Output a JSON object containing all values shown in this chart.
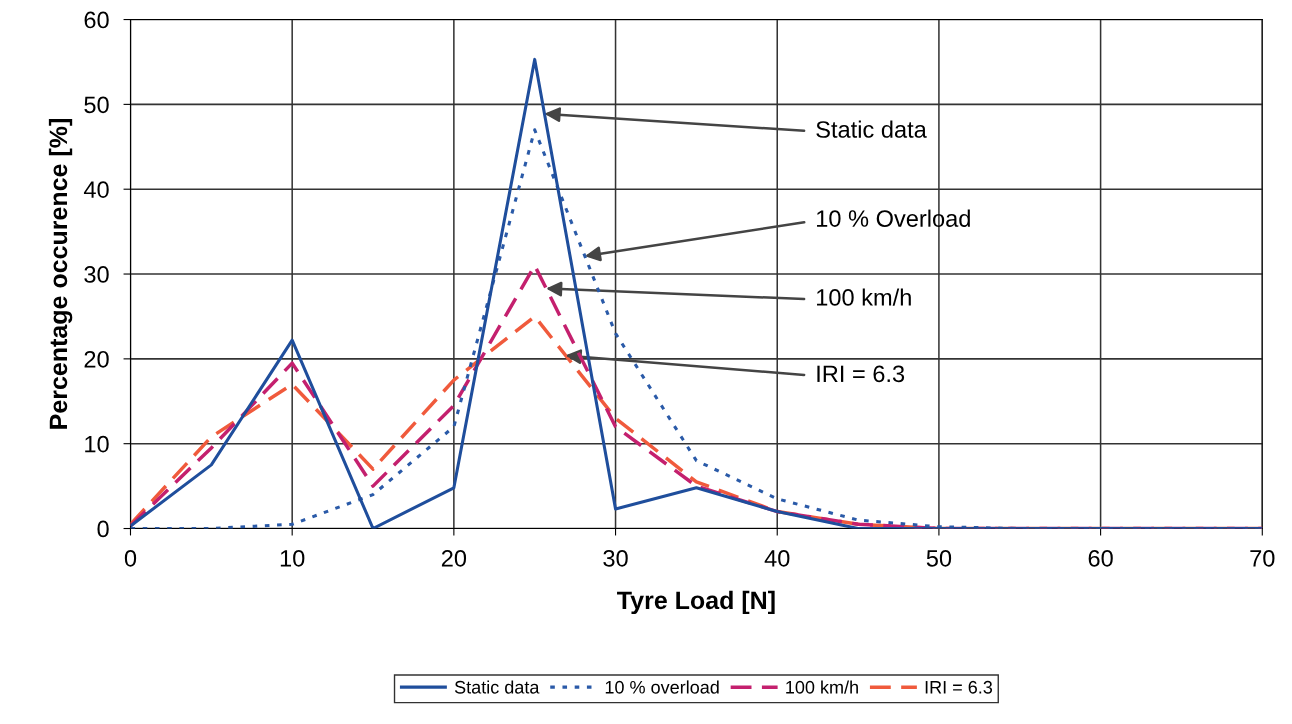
{
  "chart_data": {
    "type": "line",
    "xlabel": "Tyre Load [N]",
    "ylabel": "Percentage occurence [%]",
    "x": [
      0,
      5,
      10,
      15,
      20,
      25,
      30,
      35,
      40,
      45,
      50,
      55,
      60,
      65,
      70
    ],
    "series": [
      {
        "name": "Static data",
        "color": "#1f4e9c",
        "line_style": "solid",
        "values": [
          0.3,
          7.5,
          22.2,
          0,
          4.8,
          55.3,
          2.3,
          4.8,
          2,
          0,
          0,
          0,
          0,
          0,
          0
        ]
      },
      {
        "name": "10 % overload",
        "color": "#2a5aa8",
        "line_style": "dotted",
        "values": [
          0,
          0,
          0.5,
          4,
          12,
          47,
          23,
          8,
          3.5,
          1,
          0.2,
          0,
          0,
          0,
          0
        ]
      },
      {
        "name": "100 km/h",
        "color": "#c4206e",
        "line_style": "dashed",
        "values": [
          0.3,
          9.5,
          19.5,
          5,
          14.5,
          31,
          12,
          5,
          2,
          0.5,
          0,
          0,
          0,
          0,
          0
        ]
      },
      {
        "name": "IRI = 6.3",
        "color": "#f05a3c",
        "line_style": "dashed",
        "values": [
          0.5,
          10.8,
          17,
          7,
          17.5,
          25,
          13,
          5.5,
          2,
          0.5,
          0,
          0,
          0,
          0,
          0
        ]
      }
    ],
    "annotations": [
      {
        "text": "Static data",
        "x": 25.6,
        "y": 48.9
      },
      {
        "text": "10 % Overload",
        "x": 28.1,
        "y": 32.1
      },
      {
        "text": "100 km/h",
        "x": 25.7,
        "y": 28.3
      },
      {
        "text": "IRI = 6.3",
        "x": 26.9,
        "y": 20.4
      }
    ],
    "xlim": [
      0,
      70
    ],
    "ylim": [
      0,
      60
    ],
    "xticks": [
      0,
      10,
      20,
      30,
      40,
      50,
      60,
      70
    ],
    "yticks": [
      0,
      10,
      20,
      30,
      40,
      50,
      60
    ],
    "grid": true,
    "legend": "bottom",
    "marker": "none"
  }
}
